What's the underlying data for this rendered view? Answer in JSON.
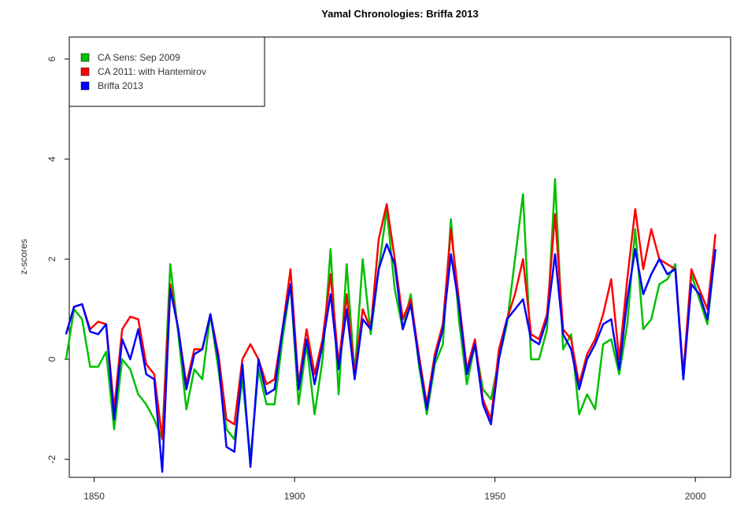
{
  "chart_data": {
    "type": "line",
    "title": "Yamal Chronologies: Briffa 2013",
    "y_label": "z-scores",
    "x": [
      1843,
      1845,
      1847,
      1849,
      1851,
      1853,
      1855,
      1857,
      1859,
      1861,
      1863,
      1865,
      1867,
      1869,
      1871,
      1873,
      1875,
      1877,
      1879,
      1881,
      1883,
      1885,
      1887,
      1889,
      1891,
      1893,
      1895,
      1897,
      1899,
      1901,
      1903,
      1905,
      1907,
      1909,
      1911,
      1913,
      1915,
      1917,
      1919,
      1921,
      1923,
      1925,
      1927,
      1929,
      1931,
      1933,
      1935,
      1937,
      1939,
      1941,
      1943,
      1945,
      1947,
      1949,
      1951,
      1953,
      1955,
      1957,
      1959,
      1961,
      1963,
      1965,
      1967,
      1969,
      1971,
      1973,
      1975,
      1977,
      1979,
      1981,
      1983,
      1985,
      1987,
      1989,
      1991,
      1993,
      1995,
      1997,
      1999,
      2001,
      2003,
      2005
    ],
    "series": [
      {
        "name": "CA Sens: Sep 2009",
        "color": "#00c000",
        "values": [
          0.0,
          1.0,
          0.8,
          -0.15,
          -0.15,
          0.15,
          -1.4,
          0.0,
          -0.2,
          -0.7,
          -0.9,
          -1.2,
          -1.6,
          1.9,
          0.5,
          -1.0,
          -0.2,
          -0.4,
          0.9,
          -0.2,
          -1.4,
          -1.6,
          -0.4,
          -2.0,
          -0.2,
          -0.9,
          -0.9,
          0.4,
          1.5,
          -0.9,
          0.3,
          -1.1,
          0.0,
          2.2,
          -0.7,
          1.9,
          -0.3,
          2.0,
          0.5,
          1.8,
          3.0,
          1.4,
          0.6,
          1.3,
          -0.1,
          -1.1,
          -0.1,
          0.3,
          2.8,
          0.8,
          -0.5,
          0.3,
          -0.6,
          -0.8,
          0.0,
          0.7,
          2.0,
          3.3,
          0.0,
          0.0,
          0.6,
          3.6,
          0.2,
          0.5,
          -1.1,
          -0.7,
          -1.0,
          0.3,
          0.4,
          -0.3,
          0.7,
          2.6,
          0.6,
          0.8,
          1.5,
          1.6,
          1.9,
          -0.4,
          1.7,
          1.2,
          0.7,
          2.2
        ]
      },
      {
        "name": "CA 2011: with Hantemirov",
        "color": "#ff0000",
        "values": [
          0.5,
          1.05,
          1.1,
          0.6,
          0.75,
          0.7,
          -1.0,
          0.6,
          0.85,
          0.8,
          -0.1,
          -0.3,
          -1.6,
          1.5,
          0.6,
          -0.5,
          0.2,
          0.2,
          0.9,
          0.1,
          -1.2,
          -1.3,
          0.0,
          0.3,
          0.0,
          -0.5,
          -0.4,
          0.6,
          1.8,
          -0.5,
          0.6,
          -0.3,
          0.4,
          1.7,
          -0.1,
          1.3,
          -0.3,
          1.0,
          0.6,
          2.4,
          3.1,
          2.0,
          0.8,
          1.2,
          0.1,
          -0.9,
          0.1,
          0.7,
          2.6,
          1.2,
          -0.2,
          0.4,
          -0.8,
          -1.2,
          0.2,
          0.8,
          1.3,
          2.0,
          0.5,
          0.4,
          0.9,
          2.9,
          0.6,
          0.4,
          -0.5,
          0.1,
          0.4,
          0.9,
          1.6,
          0.0,
          1.6,
          3.0,
          1.8,
          2.6,
          2.0,
          1.9,
          1.8,
          -0.3,
          1.8,
          1.4,
          1.0,
          2.5
        ]
      },
      {
        "name": "Briffa 2013",
        "color": "#0000ff",
        "values": [
          0.5,
          1.05,
          1.1,
          0.55,
          0.5,
          0.7,
          -1.2,
          0.4,
          0.0,
          0.6,
          -0.3,
          -0.4,
          -2.25,
          1.4,
          0.6,
          -0.6,
          0.1,
          0.2,
          0.9,
          0.0,
          -1.75,
          -1.85,
          -0.1,
          -2.15,
          0.0,
          -0.7,
          -0.6,
          0.6,
          1.5,
          -0.6,
          0.4,
          -0.5,
          0.3,
          1.3,
          -0.2,
          1.0,
          -0.4,
          0.8,
          0.6,
          1.8,
          2.3,
          1.9,
          0.6,
          1.1,
          0.0,
          -1.0,
          0.0,
          0.6,
          2.1,
          1.1,
          -0.3,
          0.3,
          -0.9,
          -1.3,
          0.0,
          0.8,
          1.0,
          1.2,
          0.4,
          0.3,
          0.8,
          2.1,
          0.5,
          0.2,
          -0.6,
          0.0,
          0.3,
          0.7,
          0.8,
          -0.2,
          1.2,
          2.2,
          1.3,
          1.7,
          2.0,
          1.7,
          1.8,
          -0.4,
          1.5,
          1.3,
          0.8,
          2.2
        ]
      }
    ],
    "xlim": [
      1843.8,
      2008.8
    ],
    "ylim": [
      -2.36,
      6.44
    ],
    "xticks": [
      1850,
      1900,
      1950,
      2000
    ],
    "yticks": [
      -2,
      0,
      2,
      4,
      6
    ]
  }
}
